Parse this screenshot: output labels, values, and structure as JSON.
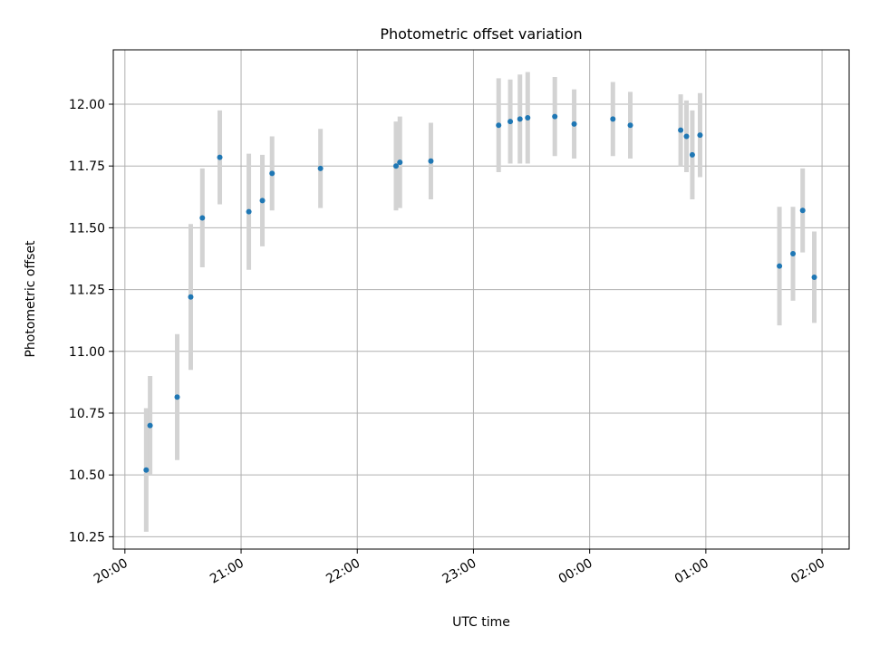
{
  "chart_data": {
    "type": "scatter",
    "title": "Photometric offset variation",
    "xlabel": "UTC time",
    "ylabel": "Photometric offset",
    "x_is_time": true,
    "xlim": [
      "19:54",
      "02:14"
    ],
    "ylim": [
      10.2,
      12.22
    ],
    "grid": true,
    "x_ticks": [
      "20:00",
      "21:00",
      "22:00",
      "23:00",
      "00:00",
      "01:00",
      "02:00"
    ],
    "y_ticks": [
      10.25,
      10.5,
      10.75,
      11.0,
      11.25,
      11.5,
      11.75,
      12.0
    ],
    "y_tick_labels": [
      "10.25",
      "10.50",
      "10.75",
      "11.00",
      "11.25",
      "11.50",
      "11.75",
      "12.00"
    ],
    "colors": {
      "point": "#1f77b4",
      "errorbar": "#d3d3d3",
      "grid": "#b0b0b0"
    },
    "series": [
      {
        "x": [
          "20:11",
          "20:13",
          "20:27",
          "20:34",
          "20:40",
          "20:49",
          "21:04",
          "21:11",
          "21:16",
          "21:41",
          "22:20",
          "22:22",
          "22:38",
          "23:13",
          "23:19",
          "23:24",
          "23:28",
          "23:42",
          "23:52",
          "00:12",
          "00:21",
          "00:47",
          "00:50",
          "00:53",
          "00:57",
          "01:38",
          "01:45",
          "01:50",
          "01:56"
        ],
        "y": [
          10.52,
          10.7,
          10.815,
          11.22,
          11.54,
          11.785,
          11.565,
          11.61,
          11.72,
          11.74,
          11.75,
          11.765,
          11.77,
          11.915,
          11.93,
          11.94,
          11.945,
          11.95,
          11.92,
          11.94,
          11.915,
          11.895,
          11.87,
          11.795,
          11.875,
          11.345,
          11.395,
          11.57,
          11.3
        ],
        "yerr": [
          0.25,
          0.2,
          0.255,
          0.295,
          0.2,
          0.19,
          0.235,
          0.185,
          0.15,
          0.16,
          0.18,
          0.185,
          0.155,
          0.19,
          0.17,
          0.18,
          0.185,
          0.16,
          0.14,
          0.15,
          0.135,
          0.145,
          0.145,
          0.18,
          0.17,
          0.24,
          0.19,
          0.17,
          0.185
        ]
      }
    ]
  }
}
